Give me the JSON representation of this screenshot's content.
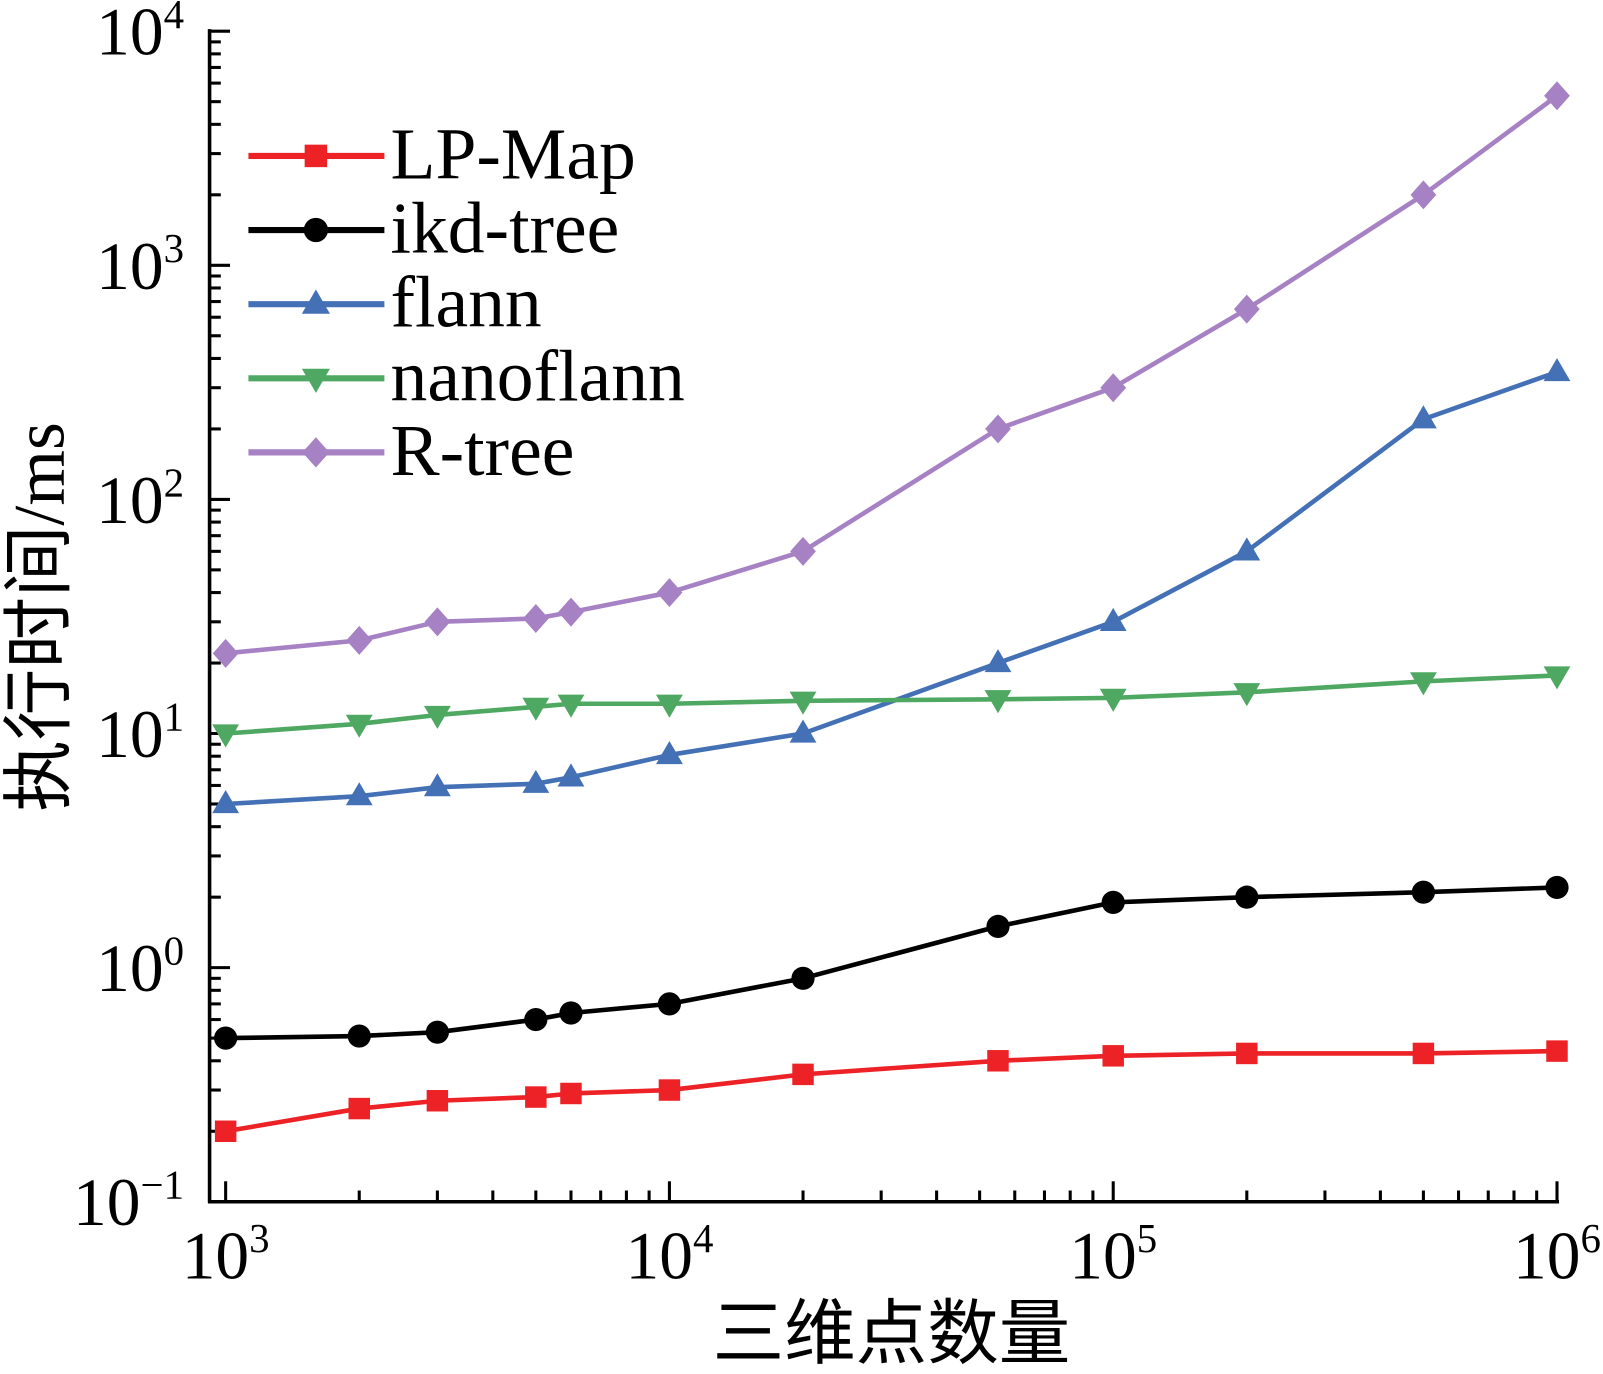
{
  "chart_data": {
    "type": "line",
    "xlabel": "三维点数量",
    "ylabel": "执行时间/ms",
    "xscale": "log",
    "yscale": "log",
    "xlim": [
      920,
      1000000
    ],
    "ylim": [
      0.1,
      10000
    ],
    "grid": false,
    "legend_position": "top-left",
    "x_ticks": [
      {
        "value": 1000,
        "base": "10",
        "exp": "3"
      },
      {
        "value": 10000,
        "base": "10",
        "exp": "4"
      },
      {
        "value": 100000,
        "base": "10",
        "exp": "5"
      },
      {
        "value": 1000000,
        "base": "10",
        "exp": "6"
      }
    ],
    "y_ticks": [
      {
        "value": 0.1,
        "base": "10",
        "exp": "−1"
      },
      {
        "value": 1,
        "base": "10",
        "exp": "0"
      },
      {
        "value": 10,
        "base": "10",
        "exp": "1"
      },
      {
        "value": 100,
        "base": "10",
        "exp": "2"
      },
      {
        "value": 1000,
        "base": "10",
        "exp": "3"
      },
      {
        "value": 10000,
        "base": "10",
        "exp": "4"
      }
    ],
    "x": [
      1000,
      2000,
      3000,
      5000,
      6000,
      10000,
      20000,
      55000,
      100000,
      200000,
      500000,
      1000000
    ],
    "series": [
      {
        "name": "LP-Map",
        "color": "#ec2226",
        "marker": "square",
        "values": [
          0.2,
          0.25,
          0.27,
          0.28,
          0.29,
          0.3,
          0.35,
          0.4,
          0.42,
          0.43,
          0.43,
          0.44
        ]
      },
      {
        "name": "ikd-tree",
        "color": "#000000",
        "marker": "circle",
        "values": [
          0.5,
          0.51,
          0.53,
          0.6,
          0.64,
          0.7,
          0.9,
          1.5,
          1.9,
          2.0,
          2.1,
          2.2
        ]
      },
      {
        "name": "flann",
        "color": "#4470b6",
        "marker": "triangle-up",
        "values": [
          5.0,
          5.4,
          5.9,
          6.1,
          6.5,
          8.1,
          10,
          20,
          30,
          60,
          220,
          350
        ]
      },
      {
        "name": "nanoflann",
        "color": "#4fa862",
        "marker": "triangle-down",
        "values": [
          10,
          11,
          12,
          13,
          13.4,
          13.4,
          13.8,
          14.0,
          14.2,
          15,
          16.7,
          17.7
        ]
      },
      {
        "name": "R-tree",
        "color": "#a682c4",
        "marker": "diamond",
        "values": [
          22,
          25,
          30,
          31,
          33,
          40,
          60,
          200,
          300,
          650,
          2000,
          5300
        ]
      }
    ]
  }
}
